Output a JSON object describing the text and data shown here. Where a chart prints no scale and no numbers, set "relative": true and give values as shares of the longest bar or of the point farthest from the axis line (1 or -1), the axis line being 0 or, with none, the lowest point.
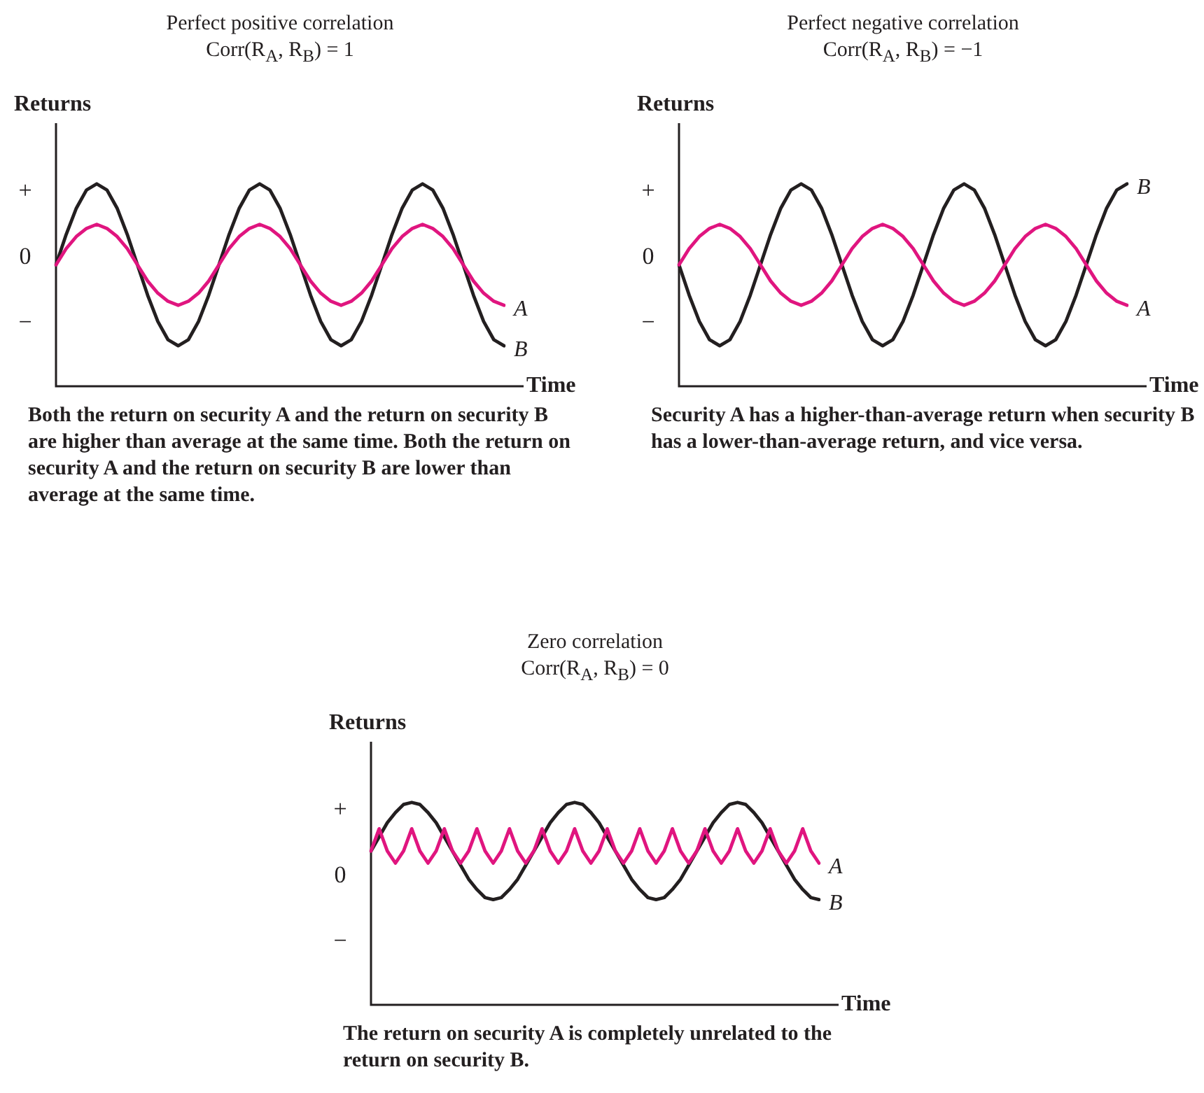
{
  "chart_data": [
    {
      "type": "line",
      "relative": true,
      "title": "Perfect positive correlation",
      "subtitle": "Corr(R$_{A}$, R$_{B}$) = 1",
      "xlabel": "Time",
      "ylabel": "Returns",
      "tick_labels": false,
      "grid": false,
      "marker": "none",
      "categories": [
        null,
        null,
        null,
        null,
        null,
        null,
        null,
        null,
        null,
        null,
        null,
        null,
        null,
        null,
        null,
        null,
        null,
        null,
        null,
        null,
        null,
        null,
        null,
        null,
        null,
        null,
        null,
        null,
        null,
        null,
        null,
        null,
        null,
        null,
        null,
        null,
        null,
        null,
        null,
        null,
        null,
        null,
        null,
        null,
        null
      ],
      "series": [
        {
          "name": "A",
          "color": "#e0157f",
          "values": [
            0.6,
            0.68,
            0.74,
            0.78,
            0.8,
            0.78,
            0.74,
            0.68,
            0.6,
            0.52,
            0.46,
            0.42,
            0.4,
            0.42,
            0.46,
            0.52,
            0.6,
            0.68,
            0.74,
            0.78,
            0.8,
            0.78,
            0.74,
            0.68,
            0.6,
            0.52,
            0.46,
            0.42,
            0.4,
            0.42,
            0.46,
            0.52,
            0.6,
            0.68,
            0.74,
            0.78,
            0.8,
            0.78,
            0.74,
            0.68,
            0.6,
            0.52,
            0.46,
            0.42,
            0.4
          ]
        },
        {
          "name": "B",
          "color": "#231f20",
          "values": [
            0.6,
            0.75,
            0.88,
            0.97,
            1,
            0.97,
            0.88,
            0.75,
            0.6,
            0.45,
            0.32,
            0.23,
            0.2,
            0.23,
            0.32,
            0.45,
            0.6,
            0.75,
            0.88,
            0.97,
            1,
            0.97,
            0.88,
            0.75,
            0.6,
            0.45,
            0.32,
            0.23,
            0.2,
            0.23,
            0.32,
            0.45,
            0.6,
            0.75,
            0.88,
            0.97,
            1,
            0.97,
            0.88,
            0.75,
            0.6,
            0.45,
            0.32,
            0.23,
            0.2
          ]
        }
      ],
      "annotations": [
        "+",
        "0",
        "−",
        "Both the return on security A and the return on security B are higher than average at the same time. Both the return on security A and the return on security B are lower than average at the same time."
      ]
    },
    {
      "type": "line",
      "relative": true,
      "title": "Perfect negative correlation",
      "subtitle": "Corr(R$_{A}$, R$_{B}$) = −1",
      "xlabel": "Time",
      "ylabel": "Returns",
      "tick_labels": false,
      "grid": false,
      "marker": "none",
      "categories": [
        null,
        null,
        null,
        null,
        null,
        null,
        null,
        null,
        null,
        null,
        null,
        null,
        null,
        null,
        null,
        null,
        null,
        null,
        null,
        null,
        null,
        null,
        null,
        null,
        null,
        null,
        null,
        null,
        null,
        null,
        null,
        null,
        null,
        null,
        null,
        null,
        null,
        null,
        null,
        null,
        null,
        null,
        null,
        null,
        null
      ],
      "series": [
        {
          "name": "A",
          "color": "#e0157f",
          "values": [
            0.6,
            0.68,
            0.74,
            0.78,
            0.8,
            0.78,
            0.74,
            0.68,
            0.6,
            0.52,
            0.46,
            0.42,
            0.4,
            0.42,
            0.46,
            0.52,
            0.6,
            0.68,
            0.74,
            0.78,
            0.8,
            0.78,
            0.74,
            0.68,
            0.6,
            0.52,
            0.46,
            0.42,
            0.4,
            0.42,
            0.46,
            0.52,
            0.6,
            0.68,
            0.74,
            0.78,
            0.8,
            0.78,
            0.74,
            0.68,
            0.6,
            0.52,
            0.46,
            0.42,
            0.4
          ]
        },
        {
          "name": "B",
          "color": "#231f20",
          "values": [
            0.6,
            0.45,
            0.32,
            0.23,
            0.2,
            0.23,
            0.32,
            0.45,
            0.6,
            0.75,
            0.88,
            0.97,
            1,
            0.97,
            0.88,
            0.75,
            0.6,
            0.45,
            0.32,
            0.23,
            0.2,
            0.23,
            0.32,
            0.45,
            0.6,
            0.75,
            0.88,
            0.97,
            1,
            0.97,
            0.88,
            0.75,
            0.6,
            0.45,
            0.32,
            0.23,
            0.2,
            0.23,
            0.32,
            0.45,
            0.6,
            0.75,
            0.88,
            0.97,
            1
          ]
        }
      ],
      "annotations": [
        "+",
        "0",
        "−",
        "Security A has a higher-than-average return when security B has a lower-than-average return, and vice versa."
      ]
    },
    {
      "type": "line",
      "relative": true,
      "title": "Zero correlation",
      "subtitle": "Corr(R$_{A}$, R$_{B}$) = 0",
      "xlabel": "Time",
      "ylabel": "Returns",
      "tick_labels": false,
      "grid": false,
      "marker": "none",
      "categories": [
        null,
        null,
        null,
        null,
        null,
        null,
        null,
        null,
        null,
        null,
        null,
        null,
        null,
        null,
        null,
        null,
        null,
        null,
        null,
        null,
        null,
        null,
        null,
        null,
        null,
        null,
        null,
        null,
        null,
        null,
        null,
        null,
        null,
        null,
        null,
        null,
        null,
        null,
        null,
        null,
        null,
        null,
        null,
        null,
        null,
        null,
        null,
        null,
        null,
        null,
        null,
        null,
        null,
        null,
        null,
        null
      ],
      "series": [
        {
          "name": "A",
          "color": "#e0157f",
          "values": [
            0.76,
            0.87,
            0.76,
            0.7,
            0.76,
            0.87,
            0.76,
            0.7,
            0.76,
            0.87,
            0.76,
            0.7,
            0.76,
            0.87,
            0.76,
            0.7,
            0.76,
            0.87,
            0.76,
            0.7,
            0.76,
            0.87,
            0.76,
            0.7,
            0.76,
            0.87,
            0.76,
            0.7,
            0.76,
            0.87,
            0.76,
            0.7,
            0.76,
            0.87,
            0.76,
            0.7,
            0.76,
            0.87,
            0.76,
            0.7,
            0.76,
            0.87,
            0.76,
            0.7,
            0.76,
            0.87,
            0.76,
            0.7,
            0.76,
            0.87,
            0.76,
            0.7,
            0.76,
            0.87,
            0.76,
            0.7
          ]
        },
        {
          "name": "B",
          "color": "#231f20",
          "values": [
            0.76,
            0.83,
            0.9,
            0.95,
            0.99,
            1,
            0.99,
            0.95,
            0.9,
            0.83,
            0.76,
            0.69,
            0.62,
            0.57,
            0.53,
            0.52,
            0.53,
            0.57,
            0.62,
            0.69,
            0.76,
            0.83,
            0.9,
            0.95,
            0.99,
            1,
            0.99,
            0.95,
            0.9,
            0.83,
            0.76,
            0.69,
            0.62,
            0.57,
            0.53,
            0.52,
            0.53,
            0.57,
            0.62,
            0.69,
            0.76,
            0.83,
            0.9,
            0.95,
            0.99,
            1,
            0.99,
            0.95,
            0.9,
            0.83,
            0.76,
            0.69,
            0.62,
            0.57,
            0.53,
            0.52
          ]
        }
      ],
      "annotations": [
        "+",
        "0",
        "−",
        "The return on security A is completely unrelated to the return on security B."
      ]
    }
  ]
}
